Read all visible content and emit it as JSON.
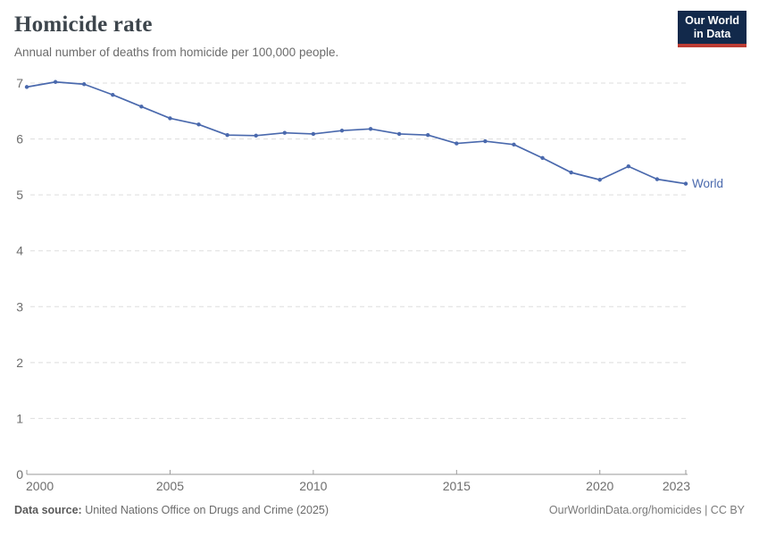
{
  "header": {
    "title": "Homicide rate",
    "subtitle": "Annual number of deaths from homicide per 100,000 people.",
    "logo": {
      "line1": "Our World",
      "line2": "in Data"
    }
  },
  "chart_data": {
    "type": "line",
    "title": "Homicide rate",
    "subtitle": "Annual number of deaths from homicide per 100,000 people.",
    "x": [
      2000,
      2001,
      2002,
      2003,
      2004,
      2005,
      2006,
      2007,
      2008,
      2009,
      2010,
      2011,
      2012,
      2013,
      2014,
      2015,
      2016,
      2017,
      2018,
      2019,
      2020,
      2021,
      2022,
      2023
    ],
    "series": [
      {
        "name": "World",
        "values": [
          6.93,
          7.02,
          6.98,
          6.79,
          6.58,
          6.37,
          6.26,
          6.07,
          6.06,
          6.11,
          6.09,
          6.15,
          6.18,
          6.09,
          6.07,
          5.92,
          5.96,
          5.9,
          5.66,
          5.4,
          5.27,
          5.51,
          5.28,
          5.2
        ]
      }
    ],
    "xlabel": "",
    "ylabel": "",
    "xlim": [
      2000,
      2023
    ],
    "ylim": [
      0,
      7
    ],
    "x_ticks": [
      2000,
      2005,
      2010,
      2015,
      2020,
      2023
    ],
    "y_ticks": [
      0,
      1,
      2,
      3,
      4,
      5,
      6,
      7
    ],
    "grid": "horizontal-dashed",
    "legend": "end-of-line-label"
  },
  "colors": {
    "line": "#4a69ad",
    "grid": "#dddddd",
    "axis": "#9a9a9a",
    "tick_label": "#6e6e6e",
    "logo_bg": "#12294b",
    "logo_accent": "#bc3b33"
  },
  "footer": {
    "source_label": "Data source:",
    "source_text": " United Nations Office on Drugs and Crime (2025)",
    "license_text": "OurWorldinData.org/homicides | CC BY"
  }
}
